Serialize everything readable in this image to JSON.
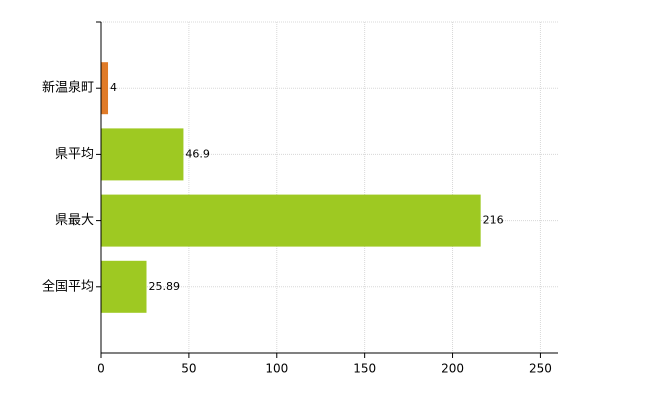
{
  "chart_data": {
    "type": "hbar",
    "categories": [
      "新温泉町",
      "県平均",
      "県最大",
      "全国平均"
    ],
    "values": [
      4,
      46.9,
      216,
      25.89
    ],
    "colors": [
      "#e07b28",
      "#9ec922",
      "#9ec922",
      "#9ec922"
    ],
    "xlim": [
      0,
      260
    ],
    "xticks": [
      0,
      50,
      100,
      150,
      200,
      250
    ],
    "grid": true
  }
}
